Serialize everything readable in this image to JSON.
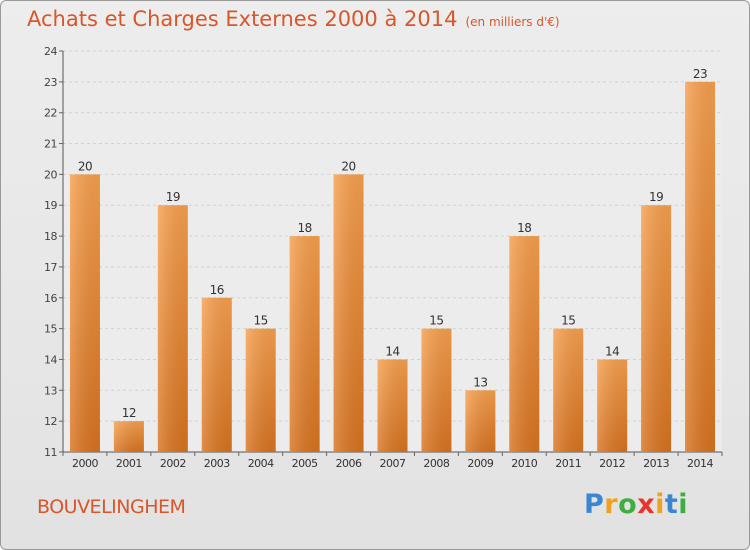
{
  "chart_data": {
    "type": "bar",
    "title": "Achats et Charges Externes 2000 à 2014",
    "subtitle": "(en milliers d'€)",
    "categories": [
      "2000",
      "2001",
      "2002",
      "2003",
      "2004",
      "2005",
      "2006",
      "2007",
      "2008",
      "2009",
      "2010",
      "2011",
      "2012",
      "2013",
      "2014"
    ],
    "values": [
      20,
      12,
      19,
      16,
      15,
      18,
      20,
      14,
      15,
      13,
      18,
      15,
      14,
      19,
      23
    ],
    "ylim": [
      11,
      24
    ],
    "yticks": [
      11,
      12,
      13,
      14,
      15,
      16,
      17,
      18,
      19,
      20,
      21,
      22,
      23,
      24
    ],
    "grid": "horizontal",
    "bar_color": "#f08a2c",
    "xlabel": "",
    "ylabel": ""
  },
  "footer": {
    "commune": "BOUVELINGHEM",
    "logo": {
      "letters": [
        "P",
        "r",
        "o",
        "x",
        "i",
        "t",
        "i"
      ],
      "colors": [
        "#3a86d1",
        "#f2a11c",
        "#3fae3f",
        "#e8342a",
        "#f2a11c",
        "#3a86d1",
        "#3fae3f"
      ]
    }
  }
}
